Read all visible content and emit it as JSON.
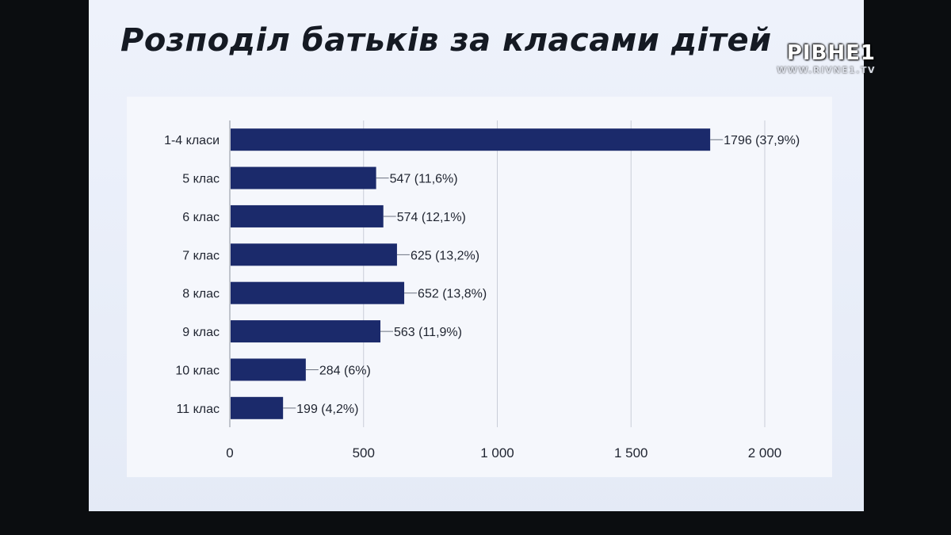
{
  "slide": {
    "title": "Розподіл батьків за класами дітей"
  },
  "watermark": {
    "logo": "РІВНЕ1",
    "url": "WWW.RIVNE1.TV"
  },
  "colors": {
    "bar": "#1b2a6b",
    "grid": "#c9ced8",
    "text": "#1f2430"
  },
  "chart_data": {
    "type": "bar",
    "orientation": "horizontal",
    "title": "",
    "xlabel": "",
    "ylabel": "",
    "categories": [
      "1-4 класи",
      "5 клас",
      "6 клас",
      "7 клас",
      "8 клас",
      "9 клас",
      "10 клас",
      "11 клас"
    ],
    "values": [
      1796,
      547,
      574,
      625,
      652,
      563,
      284,
      199
    ],
    "data_labels": [
      "1796 (37,9%)",
      "547 (11,6%)",
      "574 (12,1%)",
      "625 (13,2%)",
      "652 (13,8%)",
      "563 (11,9%)",
      "284 (6%)",
      "199 (4,2%)"
    ],
    "xlim": [
      0,
      2000
    ],
    "x_ticks": [
      0,
      500,
      1000,
      1500,
      2000
    ],
    "x_tick_labels": [
      "0",
      "500",
      "1 000",
      "1 500",
      "2 000"
    ],
    "grid": true
  }
}
